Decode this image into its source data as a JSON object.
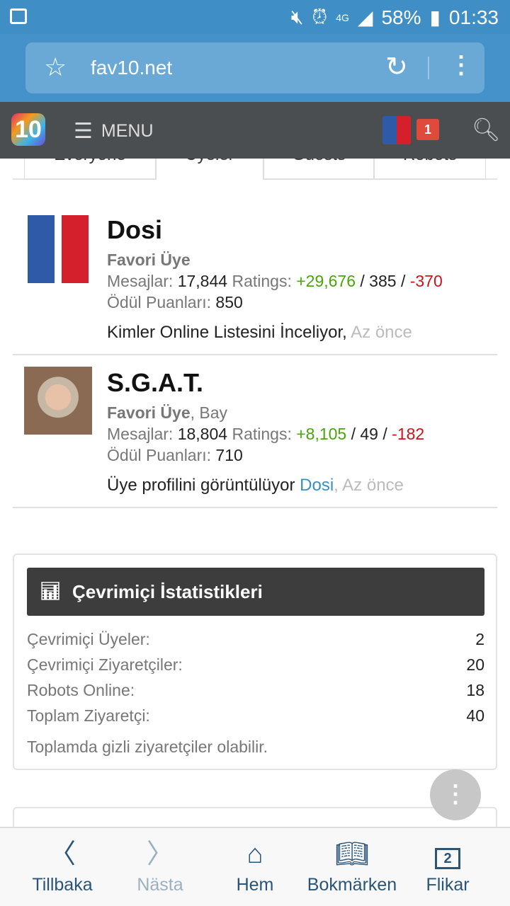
{
  "status": {
    "battery": "58%",
    "time": "01:33",
    "network": "4G"
  },
  "browser": {
    "url": "fav10.net"
  },
  "nav": {
    "logo": "10",
    "menu": "MENU",
    "notifications": "1"
  },
  "tabs": [
    "Everyone",
    "Üyeler",
    "Guests",
    "Robots"
  ],
  "members": [
    {
      "name": "Dosi",
      "rank": "Favori Üye",
      "extra": "",
      "messages_label": "Mesajlar:",
      "messages": "17,844",
      "ratings_label": "Ratings:",
      "pos": "+29,676",
      "neutral": "385",
      "neg": "-370",
      "points_label": "Ödül Puanları:",
      "points": "850",
      "activity": "Kimler Online Listesini İnceliyor,",
      "activity_link": "",
      "time": "Az önce"
    },
    {
      "name": "S.G.A.T.",
      "rank": "Favori Üye",
      "extra": ", Bay",
      "messages_label": "Mesajlar:",
      "messages": "18,804",
      "ratings_label": "Ratings:",
      "pos": "+8,105",
      "neutral": "49",
      "neg": "-182",
      "points_label": "Ödül Puanları:",
      "points": "710",
      "activity": "Üye profilini görüntülüyor",
      "activity_link": "Dosi",
      "time": "Az önce"
    }
  ],
  "stats": {
    "title": "Çevrimiçi İstatistikleri",
    "rows": [
      {
        "label": "Çevrimiçi Üyeler:",
        "value": "2"
      },
      {
        "label": "Çevrimiçi Ziyaretçiler:",
        "value": "20"
      },
      {
        "label": "Robots Online:",
        "value": "18"
      },
      {
        "label": "Toplam Ziyaretçi:",
        "value": "40"
      }
    ],
    "note": "Toplamda gizli ziyaretçiler olabilir."
  },
  "bottom": {
    "back": "Tillbaka",
    "forward": "Nästa",
    "home": "Hem",
    "bookmarks": "Bokmärken",
    "tabs": "Flikar",
    "tab_count": "2"
  }
}
